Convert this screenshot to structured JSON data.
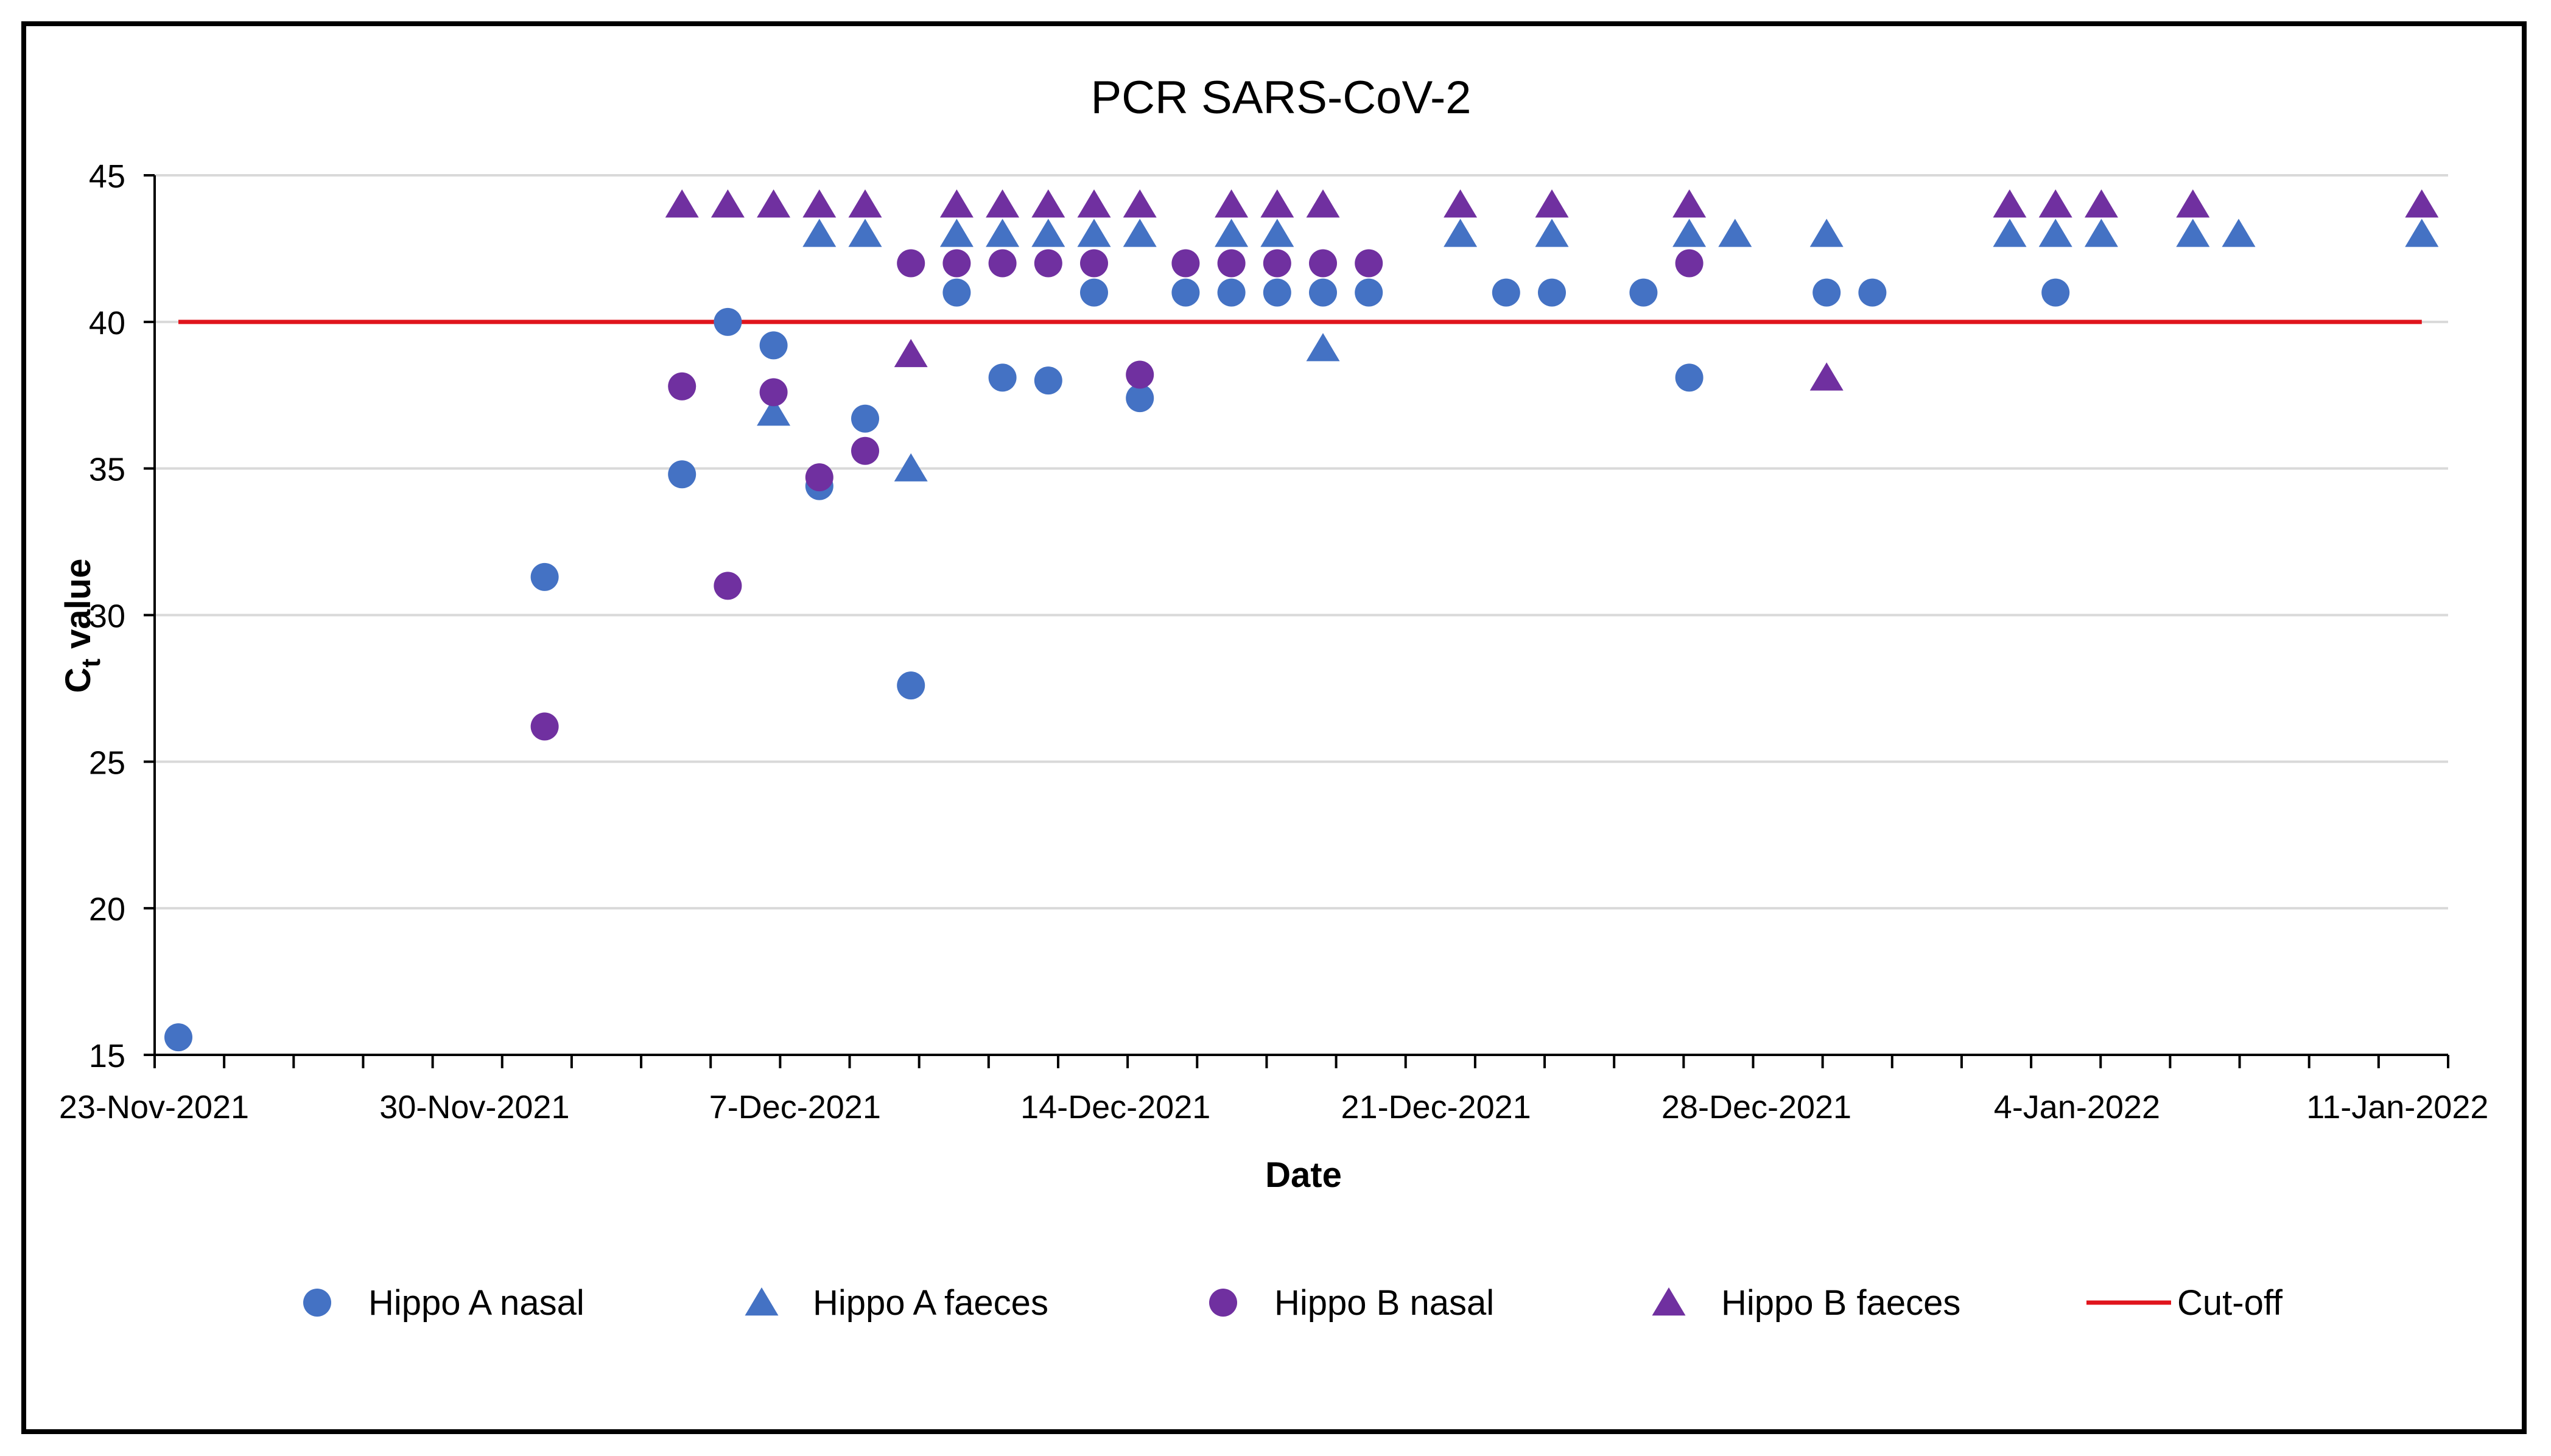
{
  "chart_data": {
    "type": "scatter",
    "title": "PCR SARS-CoV-2",
    "xlabel": "Date",
    "ylabel_main": "C",
    "ylabel_sub": "t",
    "ylabel_rest": " value",
    "x_unit": "days since 23-Nov-2021",
    "xlim": [
      0,
      49.5
    ],
    "ylim": [
      15,
      45
    ],
    "yticks": [
      15,
      20,
      25,
      30,
      35,
      40,
      45
    ],
    "xtick_positions": [
      0,
      7,
      14,
      21,
      28,
      35,
      42,
      49
    ],
    "xtick_labels": [
      "23-Nov-2021",
      "30-Nov-2021",
      "7-Dec-2021",
      "14-Dec-2021",
      "21-Dec-2021",
      "28-Dec-2021",
      "4-Jan-2022",
      "11-Jan-2022"
    ],
    "gridlines": "horizontal",
    "legend_position": "bottom",
    "colors": {
      "blue": "#4472C4",
      "purple": "#7030A0",
      "cutoff": "#E0141C",
      "grid": "#D9D9D9"
    },
    "series": [
      {
        "name": "Hippo A nasal",
        "marker": "circle",
        "color": "#4472C4",
        "points": [
          [
            0,
            15.6
          ],
          [
            8,
            31.3
          ],
          [
            11,
            34.8
          ],
          [
            12,
            40
          ],
          [
            13,
            39.2
          ],
          [
            14,
            34.4
          ],
          [
            15,
            36.7
          ],
          [
            16,
            27.6
          ],
          [
            17,
            41
          ],
          [
            18,
            38.1
          ],
          [
            19,
            38
          ],
          [
            20,
            41
          ],
          [
            21,
            37.4
          ],
          [
            22,
            41
          ],
          [
            23,
            41
          ],
          [
            24,
            41
          ],
          [
            25,
            41
          ],
          [
            26,
            41
          ],
          [
            29,
            41
          ],
          [
            30,
            41
          ],
          [
            32,
            41
          ],
          [
            33,
            38.1
          ],
          [
            36,
            41
          ],
          [
            37,
            41
          ],
          [
            41,
            41
          ]
        ]
      },
      {
        "name": "Hippo A faeces",
        "marker": "triangle",
        "color": "#4472C4",
        "points": [
          [
            13,
            36.9
          ],
          [
            14,
            43
          ],
          [
            15,
            43
          ],
          [
            16,
            35
          ],
          [
            17,
            43
          ],
          [
            18,
            43
          ],
          [
            19,
            43
          ],
          [
            20,
            43
          ],
          [
            21,
            43
          ],
          [
            23,
            43
          ],
          [
            24,
            43
          ],
          [
            25,
            39.1
          ],
          [
            28,
            43
          ],
          [
            30,
            43
          ],
          [
            33,
            43
          ],
          [
            34,
            43
          ],
          [
            36,
            43
          ],
          [
            40,
            43
          ],
          [
            41,
            43
          ],
          [
            42,
            43
          ],
          [
            44,
            43
          ],
          [
            45,
            43
          ],
          [
            49,
            43
          ]
        ]
      },
      {
        "name": "Hippo B nasal",
        "marker": "circle",
        "color": "#7030A0",
        "points": [
          [
            8,
            26.2
          ],
          [
            11,
            37.8
          ],
          [
            12,
            31
          ],
          [
            13,
            37.6
          ],
          [
            14,
            34.7
          ],
          [
            15,
            35.6
          ],
          [
            16,
            42
          ],
          [
            17,
            42
          ],
          [
            18,
            42
          ],
          [
            19,
            42
          ],
          [
            20,
            42
          ],
          [
            21,
            38.2
          ],
          [
            22,
            42
          ],
          [
            23,
            42
          ],
          [
            24,
            42
          ],
          [
            25,
            42
          ],
          [
            26,
            42
          ],
          [
            33,
            42
          ]
        ]
      },
      {
        "name": "Hippo B faeces",
        "marker": "triangle",
        "color": "#7030A0",
        "points": [
          [
            11,
            44
          ],
          [
            12,
            44
          ],
          [
            13,
            44
          ],
          [
            14,
            44
          ],
          [
            15,
            44
          ],
          [
            16,
            38.9
          ],
          [
            17,
            44
          ],
          [
            18,
            44
          ],
          [
            19,
            44
          ],
          [
            20,
            44
          ],
          [
            21,
            44
          ],
          [
            23,
            44
          ],
          [
            24,
            44
          ],
          [
            25,
            44
          ],
          [
            28,
            44
          ],
          [
            30,
            44
          ],
          [
            33,
            44
          ],
          [
            36,
            38.1
          ],
          [
            40,
            44
          ],
          [
            41,
            44
          ],
          [
            42,
            44
          ],
          [
            44,
            44
          ],
          [
            49,
            44
          ]
        ]
      },
      {
        "name": "Cut-off",
        "marker": "line",
        "color": "#E0141C",
        "line": [
          [
            0,
            40
          ],
          [
            49,
            40
          ]
        ]
      }
    ]
  }
}
